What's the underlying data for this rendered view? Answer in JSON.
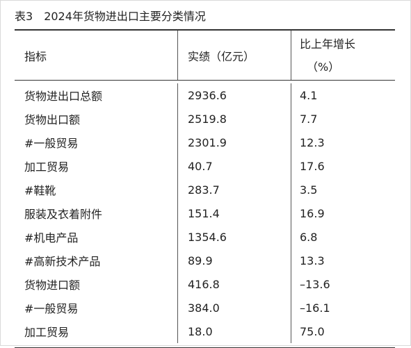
{
  "table_title": {
    "number": "表3",
    "text": "2024年货物进出口主要分类情况"
  },
  "header": {
    "indicator": "指标",
    "value": "实绩（亿元）",
    "growth_line1": "比上年增长",
    "growth_line2": "（%）"
  },
  "rows": [
    {
      "indicator": "货物进出口总额",
      "value": "2936.6",
      "growth": "4.1"
    },
    {
      "indicator": "货物出口额",
      "value": "2519.8",
      "growth": "7.7"
    },
    {
      "indicator": "#一般贸易",
      "value": "2301.9",
      "growth": "12.3"
    },
    {
      "indicator": "加工贸易",
      "value": "40.7",
      "growth": "17.6"
    },
    {
      "indicator": "#鞋靴",
      "value": "283.7",
      "growth": "3.5"
    },
    {
      "indicator": "服装及衣着附件",
      "value": "151.4",
      "growth": "16.9"
    },
    {
      "indicator": "#机电产品",
      "value": "1354.6",
      "growth": "6.8"
    },
    {
      "indicator": "#高新技术产品",
      "value": "89.9",
      "growth": "13.3"
    },
    {
      "indicator": "货物进口额",
      "value": "416.8",
      "growth": "–13.6"
    },
    {
      "indicator": "#一般贸易",
      "value": "384.0",
      "growth": "–16.1"
    },
    {
      "indicator": "加工贸易",
      "value": "18.0",
      "growth": "75.0"
    }
  ]
}
